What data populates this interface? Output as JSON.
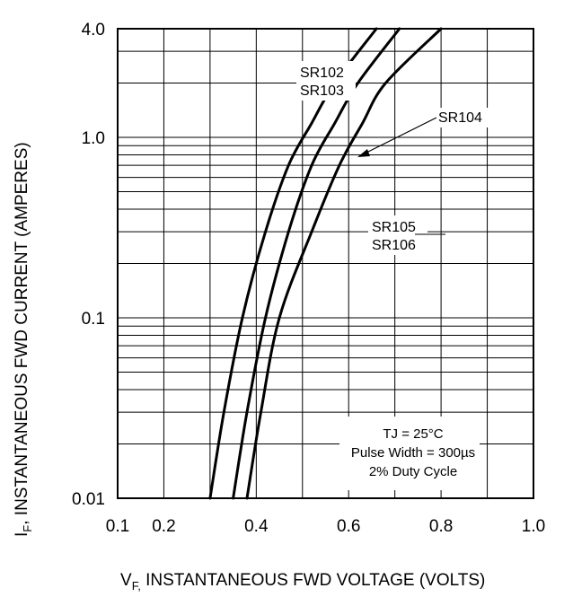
{
  "chart_data": {
    "type": "line",
    "xlabel": {
      "symbol": "V",
      "subscript": "F,",
      "text": " INSTANTANEOUS FWD VOLTAGE (VOLTS)"
    },
    "ylabel": {
      "symbol": "I",
      "subscript": "F",
      "text": ", INSTANTANEOUS FWD CURRENT (AMPERES)"
    },
    "xlim": [
      0.1,
      1.0
    ],
    "ylim": [
      0.01,
      4.0
    ],
    "yscale": "log",
    "x_ticks": [
      0.1,
      0.2,
      0.4,
      0.6,
      0.8,
      1.0
    ],
    "x_tick_labels": [
      "0.1",
      "0.2",
      "0.4",
      "0.6",
      "0.8",
      "1.0"
    ],
    "y_ticks": [
      0.01,
      0.1,
      1.0,
      4.0
    ],
    "y_tick_labels": [
      "0.01",
      "0.1",
      "1.0",
      "4.0"
    ],
    "grid": true,
    "series": [
      {
        "name": "SR102 SR103",
        "points": [
          [
            0.3,
            0.01
          ],
          [
            0.33,
            0.03
          ],
          [
            0.37,
            0.1
          ],
          [
            0.42,
            0.3
          ],
          [
            0.47,
            0.7
          ],
          [
            0.52,
            1.2
          ],
          [
            0.57,
            2.0
          ],
          [
            0.66,
            4.0
          ]
        ]
      },
      {
        "name": "SR104",
        "points": [
          [
            0.35,
            0.01
          ],
          [
            0.38,
            0.03
          ],
          [
            0.42,
            0.1
          ],
          [
            0.47,
            0.3
          ],
          [
            0.52,
            0.7
          ],
          [
            0.57,
            1.2
          ],
          [
            0.62,
            2.0
          ],
          [
            0.71,
            4.0
          ]
        ]
      },
      {
        "name": "SR105 SR106",
        "points": [
          [
            0.38,
            0.01
          ],
          [
            0.41,
            0.03
          ],
          [
            0.45,
            0.1
          ],
          [
            0.52,
            0.3
          ],
          [
            0.58,
            0.7
          ],
          [
            0.63,
            1.2
          ],
          [
            0.68,
            2.0
          ],
          [
            0.8,
            4.0
          ]
        ]
      }
    ],
    "annotations": {
      "sr102": "SR102",
      "sr103": "SR103",
      "sr104": "SR104",
      "sr105": "SR105",
      "sr106": "SR106",
      "conditions": [
        "TJ = 25°C",
        "Pulse Width = 300µs",
        "2% Duty Cycle"
      ]
    }
  }
}
